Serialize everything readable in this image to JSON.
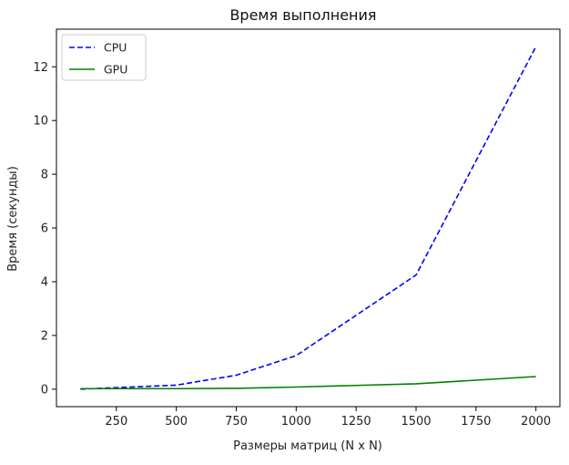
{
  "chart_data": {
    "type": "line",
    "title": "Время выполнения",
    "xlabel": "Размеры матриц (N x N)",
    "ylabel": "Время (секунды)",
    "x": [
      100,
      500,
      750,
      1000,
      1500,
      2000
    ],
    "series": [
      {
        "name": "CPU",
        "values": [
          0.0,
          0.15,
          0.52,
          1.25,
          4.25,
          12.75
        ],
        "color": "#0000ff",
        "style": "dashed"
      },
      {
        "name": "GPU",
        "values": [
          0.02,
          0.02,
          0.03,
          0.08,
          0.2,
          0.47
        ],
        "color": "#008000",
        "style": "solid"
      }
    ],
    "xlim": [
      0,
      2100
    ],
    "ylim": [
      -0.65,
      13.4
    ],
    "xticks": [
      250,
      500,
      750,
      1000,
      1250,
      1500,
      1750,
      2000
    ],
    "yticks": [
      0,
      2,
      4,
      6,
      8,
      10,
      12
    ],
    "grid": false,
    "legend_position": "upper-left"
  }
}
